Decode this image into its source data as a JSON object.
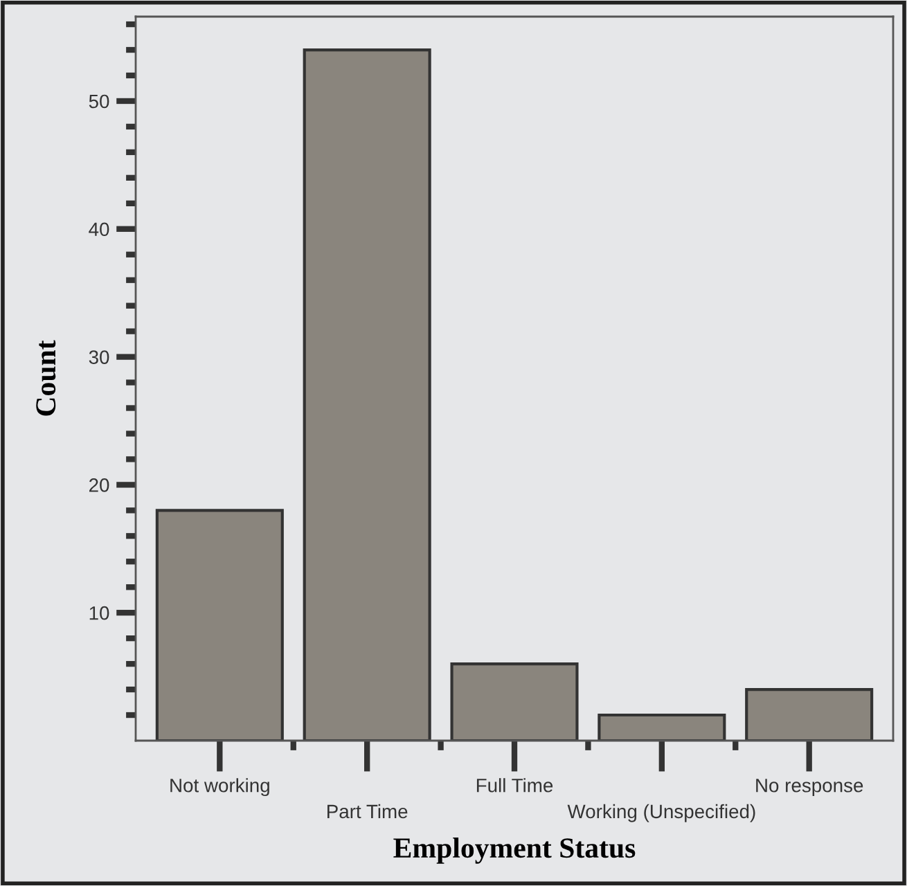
{
  "chart_data": {
    "type": "bar",
    "xlabel": "Employment Status",
    "ylabel": "Count",
    "categories": [
      "Not working",
      "Part Time",
      "Full Time",
      "Working (Unspecified)",
      "No response"
    ],
    "values": [
      18,
      54,
      6,
      2,
      4
    ],
    "color": "#8a857d",
    "ylim": [
      0,
      56.6
    ],
    "yticks": [
      {
        "value": 2,
        "label": null
      },
      {
        "value": 4,
        "label": null
      },
      {
        "value": 6,
        "label": null
      },
      {
        "value": 8,
        "label": null
      },
      10,
      {
        "value": 12,
        "label": null
      },
      {
        "value": 14,
        "label": null
      },
      {
        "value": 16,
        "label": null
      },
      {
        "value": 18,
        "label": null
      },
      20,
      {
        "value": 22,
        "label": null
      },
      {
        "value": 24,
        "label": null
      },
      {
        "value": 26,
        "label": null
      },
      {
        "value": 28,
        "label": null
      },
      30,
      {
        "value": 32,
        "label": null
      },
      {
        "value": 34,
        "label": null
      },
      {
        "value": 36,
        "label": null
      },
      {
        "value": 38,
        "label": null
      },
      40,
      {
        "value": 42,
        "label": null
      },
      {
        "value": 44,
        "label": null
      },
      {
        "value": 46,
        "label": null
      },
      {
        "value": 48,
        "label": null
      },
      50,
      {
        "value": 52,
        "label": null
      },
      {
        "value": 54,
        "label": null
      },
      {
        "value": 56,
        "label": null
      }
    ],
    "grid": false
  }
}
